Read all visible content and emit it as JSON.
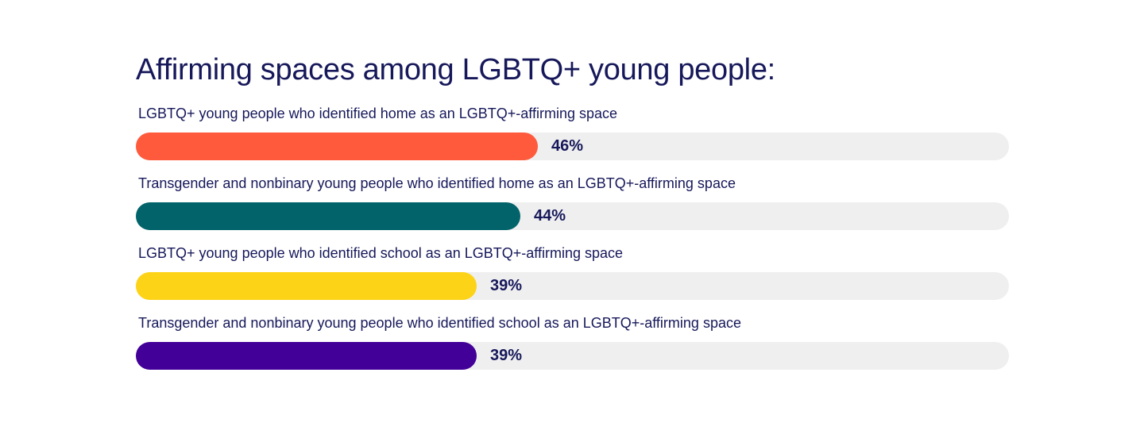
{
  "chart_data": {
    "type": "bar",
    "orientation": "horizontal",
    "title": "Affirming spaces among LGBTQ+ young people:",
    "xlim": [
      0,
      100
    ],
    "unit": "%",
    "grid": false,
    "legend": "none",
    "categories": [
      "LGBTQ+ young people who identified home as an LGBTQ+-affirming space",
      "Transgender and nonbinary young people who identified home as an LGBTQ+-affirming space",
      "LGBTQ+ young people who identified school as an LGBTQ+-affirming space",
      "Transgender and nonbinary young people who identified school as an LGBTQ+-affirming space"
    ],
    "values": [
      46,
      44,
      39,
      39
    ],
    "value_labels": [
      "46%",
      "44%",
      "39%",
      "39%"
    ],
    "colors": [
      "#ff5a3c",
      "#02636b",
      "#fdd317",
      "#430099"
    ],
    "track_color": "#efefef"
  }
}
